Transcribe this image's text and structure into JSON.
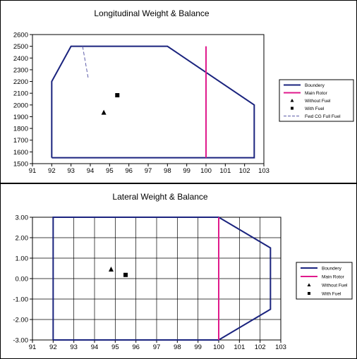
{
  "chart_data": [
    {
      "type": "scatter",
      "title": "Longitudinal Weight & Balance",
      "xlabel": "",
      "ylabel": "",
      "xlim": [
        91,
        103
      ],
      "ylim": [
        1500,
        2600
      ],
      "x_ticks": [
        91,
        92,
        93,
        94,
        95,
        96,
        97,
        98,
        99,
        100,
        101,
        102,
        103
      ],
      "y_ticks": [
        1500,
        1600,
        1700,
        1800,
        1900,
        2000,
        2100,
        2200,
        2300,
        2400,
        2500,
        2600
      ],
      "y_decimals": 0,
      "grid": false,
      "legend_position": "right",
      "series": [
        {
          "name": "Boundery",
          "kind": "line",
          "color": "#1a237e",
          "dash": "",
          "points": [
            [
              92,
              1550
            ],
            [
              92,
              2200
            ],
            [
              93,
              2500
            ],
            [
              98,
              2500
            ],
            [
              102.5,
              2000
            ],
            [
              102.5,
              1550
            ],
            [
              92,
              1550
            ]
          ]
        },
        {
          "name": "Main Rotor",
          "kind": "line",
          "color": "#e0198c",
          "dash": "",
          "points": [
            [
              100,
              1550
            ],
            [
              100,
              2500
            ]
          ]
        },
        {
          "name": "Without Fuel",
          "kind": "marker",
          "marker": "triangle",
          "color": "#000000",
          "points": [
            [
              94.7,
              1935
            ]
          ]
        },
        {
          "name": "With Fuel",
          "kind": "marker",
          "marker": "square",
          "color": "#000000",
          "points": [
            [
              95.4,
              2083
            ]
          ]
        },
        {
          "name": "Fwd CG Full Fuel",
          "kind": "line",
          "color": "#5c5ca8",
          "dash": "5,3",
          "points": [
            [
              93.6,
              2500
            ],
            [
              93.9,
              2220
            ]
          ]
        }
      ]
    },
    {
      "type": "scatter",
      "title": "Lateral Weight & Balance",
      "xlabel": "",
      "ylabel": "",
      "xlim": [
        91,
        103
      ],
      "ylim": [
        -3,
        3
      ],
      "x_ticks": [
        91,
        92,
        93,
        94,
        95,
        96,
        97,
        98,
        99,
        100,
        101,
        102,
        103
      ],
      "y_ticks": [
        -3,
        -2,
        -1,
        0,
        1,
        2,
        3
      ],
      "y_decimals": 2,
      "grid": true,
      "legend_position": "right",
      "series": [
        {
          "name": "Boundery",
          "kind": "line",
          "color": "#1a237e",
          "dash": "",
          "points": [
            [
              92,
              -3
            ],
            [
              92,
              3
            ],
            [
              100,
              3
            ],
            [
              102.5,
              1.5
            ],
            [
              102.5,
              -1.5
            ],
            [
              100,
              -3
            ],
            [
              92,
              -3
            ]
          ]
        },
        {
          "name": "Main Rotor",
          "kind": "line",
          "color": "#e0198c",
          "dash": "",
          "points": [
            [
              100,
              -3
            ],
            [
              100,
              3
            ]
          ]
        },
        {
          "name": "Without Fuel",
          "kind": "marker",
          "marker": "triangle",
          "color": "#000000",
          "points": [
            [
              94.8,
              0.45
            ]
          ]
        },
        {
          "name": "With Fuel",
          "kind": "marker",
          "marker": "square",
          "color": "#000000",
          "points": [
            [
              95.5,
              0.18
            ]
          ]
        }
      ]
    }
  ]
}
